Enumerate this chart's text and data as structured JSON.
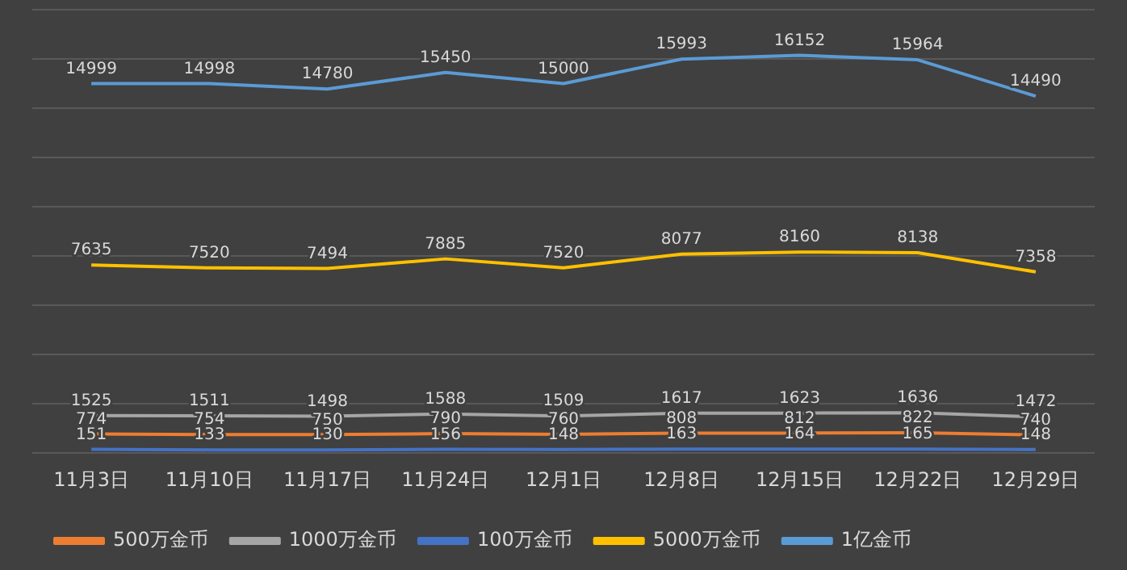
{
  "chart_data": {
    "type": "line",
    "categories": [
      "11月3日",
      "11月10日",
      "11月17日",
      "11月24日",
      "12月1日",
      "12月8日",
      "12月15日",
      "12月22日",
      "12月29日"
    ],
    "series": [
      {
        "name": "500万金币",
        "color": "#ed7d31",
        "values": [
          774,
          754,
          750,
          790,
          760,
          808,
          812,
          822,
          740
        ]
      },
      {
        "name": "1000万金币",
        "color": "#a5a5a5",
        "values": [
          1525,
          1511,
          1498,
          1588,
          1509,
          1617,
          1623,
          1636,
          1472
        ]
      },
      {
        "name": "100万金币",
        "color": "#4472c4",
        "values": [
          151,
          133,
          130,
          156,
          148,
          163,
          164,
          165,
          148
        ]
      },
      {
        "name": "5000万金币",
        "color": "#ffc000",
        "values": [
          7635,
          7520,
          7494,
          7885,
          7520,
          8077,
          8160,
          8138,
          7358
        ]
      },
      {
        "name": "1亿金币",
        "color": "#5b9bd5",
        "values": [
          14999,
          14998,
          14780,
          15450,
          15000,
          15993,
          16152,
          15964,
          14490
        ]
      }
    ],
    "ylim": [
      0,
      18000
    ],
    "yticks": [
      {
        "value": 0,
        "label": null
      },
      {
        "value": 2000,
        "label": null
      },
      {
        "value": 4000,
        "label": null
      },
      {
        "value": 6000,
        "label": null
      },
      {
        "value": 8000,
        "label": null
      },
      {
        "value": 10000,
        "label": null
      },
      {
        "value": 12000,
        "label": null
      },
      {
        "value": 14000,
        "label": null
      },
      {
        "value": 16000,
        "label": null
      },
      {
        "value": 18000,
        "label": null
      }
    ],
    "tick_labels": "x",
    "grid": "y",
    "legend": "bottom",
    "marker": "none",
    "line_style": "solid",
    "data_labels": true
  }
}
